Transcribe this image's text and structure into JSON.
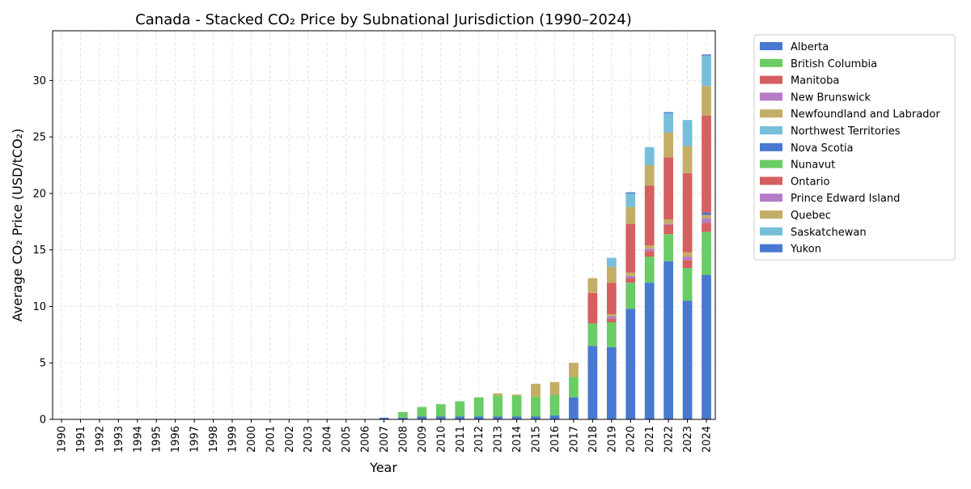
{
  "chart_data": {
    "type": "bar",
    "stacked": true,
    "title": "Canada - Stacked CO₂ Price by Subnational Jurisdiction (1990–2024)",
    "xlabel": "Year",
    "ylabel": "Average CO₂ Price (USD/tCO₂)",
    "ylim": [
      0,
      34.4
    ],
    "yticks": [
      0,
      5,
      10,
      15,
      20,
      25,
      30
    ],
    "grid": true,
    "legend_position": "outside-right",
    "categories": [
      "1990",
      "1991",
      "1992",
      "1993",
      "1994",
      "1995",
      "1996",
      "1997",
      "1998",
      "1999",
      "2000",
      "2001",
      "2002",
      "2003",
      "2004",
      "2005",
      "2006",
      "2007",
      "2008",
      "2009",
      "2010",
      "2011",
      "2012",
      "2013",
      "2014",
      "2015",
      "2016",
      "2017",
      "2018",
      "2019",
      "2020",
      "2021",
      "2022",
      "2023",
      "2024"
    ],
    "series": [
      {
        "name": "Alberta",
        "color": "#4878d0",
        "values": [
          0,
          0,
          0,
          0,
          0,
          0,
          0,
          0,
          0,
          0,
          0,
          0,
          0,
          0,
          0,
          0,
          0,
          0.15,
          0.15,
          0.25,
          0.25,
          0.25,
          0.25,
          0.25,
          0.25,
          0.25,
          0.35,
          1.95,
          6.5,
          6.4,
          9.8,
          12.1,
          14.0,
          10.5,
          12.8
        ]
      },
      {
        "name": "British Columbia",
        "color": "#6acc64",
        "values": [
          0,
          0,
          0,
          0,
          0,
          0,
          0,
          0,
          0,
          0,
          0,
          0,
          0,
          0,
          0,
          0,
          0,
          0,
          0.5,
          0.85,
          1.1,
          1.35,
          1.7,
          1.85,
          1.85,
          1.75,
          1.8,
          1.8,
          2.0,
          2.2,
          2.3,
          2.3,
          2.4,
          2.9,
          3.8
        ]
      },
      {
        "name": "Manitoba",
        "color": "#d65f5f",
        "values": [
          0,
          0,
          0,
          0,
          0,
          0,
          0,
          0,
          0,
          0,
          0,
          0,
          0,
          0,
          0,
          0,
          0,
          0,
          0,
          0,
          0,
          0,
          0,
          0,
          0,
          0,
          0,
          0,
          0,
          0.3,
          0.4,
          0.5,
          0.8,
          0.7,
          0.8
        ]
      },
      {
        "name": "New Brunswick",
        "color": "#b47cc7",
        "values": [
          0,
          0,
          0,
          0,
          0,
          0,
          0,
          0,
          0,
          0,
          0,
          0,
          0,
          0,
          0,
          0,
          0,
          0,
          0,
          0,
          0,
          0,
          0,
          0,
          0,
          0,
          0,
          0,
          0,
          0.2,
          0.2,
          0.2,
          0.1,
          0.3,
          0.4
        ]
      },
      {
        "name": "Newfoundland and Labrador",
        "color": "#c4ad66",
        "values": [
          0,
          0,
          0,
          0,
          0,
          0,
          0,
          0,
          0,
          0,
          0,
          0,
          0,
          0,
          0,
          0,
          0,
          0,
          0,
          0,
          0,
          0,
          0,
          0,
          0,
          0,
          0,
          0,
          0,
          0.2,
          0.3,
          0.3,
          0.4,
          0.4,
          0.3
        ]
      },
      {
        "name": "Northwest Territories",
        "color": "#77bedb",
        "values": [
          0,
          0,
          0,
          0,
          0,
          0,
          0,
          0,
          0,
          0,
          0,
          0,
          0,
          0,
          0,
          0,
          0,
          0,
          0,
          0,
          0,
          0,
          0,
          0,
          0,
          0,
          0,
          0,
          0,
          0,
          0,
          0,
          0,
          0,
          0
        ]
      },
      {
        "name": "Nova Scotia",
        "color": "#4878d0",
        "values": [
          0,
          0,
          0,
          0,
          0,
          0,
          0,
          0,
          0,
          0,
          0,
          0,
          0,
          0,
          0,
          0,
          0,
          0,
          0,
          0,
          0,
          0,
          0,
          0,
          0,
          0,
          0,
          0,
          0,
          0,
          0,
          0,
          0,
          0,
          0.2
        ]
      },
      {
        "name": "Nunavut",
        "color": "#6acc64",
        "values": [
          0,
          0,
          0,
          0,
          0,
          0,
          0,
          0,
          0,
          0,
          0,
          0,
          0,
          0,
          0,
          0,
          0,
          0,
          0,
          0,
          0,
          0,
          0,
          0,
          0,
          0,
          0,
          0,
          0,
          0,
          0,
          0,
          0,
          0,
          0
        ]
      },
      {
        "name": "Ontario",
        "color": "#d65f5f",
        "values": [
          0,
          0,
          0,
          0,
          0,
          0,
          0,
          0,
          0,
          0,
          0,
          0,
          0,
          0,
          0,
          0,
          0,
          0,
          0,
          0,
          0,
          0,
          0,
          0,
          0,
          0,
          0,
          0,
          2.7,
          2.8,
          4.3,
          5.3,
          5.5,
          7.0,
          8.6
        ]
      },
      {
        "name": "Prince Edward Island",
        "color": "#b47cc7",
        "values": [
          0,
          0,
          0,
          0,
          0,
          0,
          0,
          0,
          0,
          0,
          0,
          0,
          0,
          0,
          0,
          0,
          0,
          0,
          0,
          0,
          0,
          0,
          0,
          0,
          0,
          0,
          0,
          0,
          0,
          0,
          0,
          0,
          0,
          0,
          0
        ]
      },
      {
        "name": "Quebec",
        "color": "#c4ad66",
        "values": [
          0,
          0,
          0,
          0,
          0,
          0,
          0,
          0,
          0,
          0,
          0,
          0,
          0,
          0,
          0,
          0,
          0,
          0,
          0,
          0,
          0,
          0,
          0,
          0.2,
          0.1,
          1.15,
          1.15,
          1.25,
          1.3,
          1.4,
          1.5,
          1.8,
          2.2,
          2.4,
          2.6
        ]
      },
      {
        "name": "Saskatchewan",
        "color": "#77bedb",
        "values": [
          0,
          0,
          0,
          0,
          0,
          0,
          0,
          0,
          0,
          0,
          0,
          0,
          0,
          0,
          0,
          0,
          0,
          0,
          0,
          0,
          0,
          0,
          0,
          0,
          0,
          0,
          0,
          0,
          0,
          0.8,
          1.2,
          1.6,
          1.7,
          2.3,
          2.7
        ]
      },
      {
        "name": "Yukon",
        "color": "#4878d0",
        "values": [
          0,
          0,
          0,
          0,
          0,
          0,
          0,
          0,
          0,
          0,
          0,
          0,
          0,
          0,
          0,
          0,
          0,
          0,
          0,
          0,
          0,
          0,
          0,
          0,
          0,
          0,
          0,
          0,
          0,
          0,
          0.1,
          0,
          0.1,
          0,
          0.1
        ]
      }
    ]
  }
}
